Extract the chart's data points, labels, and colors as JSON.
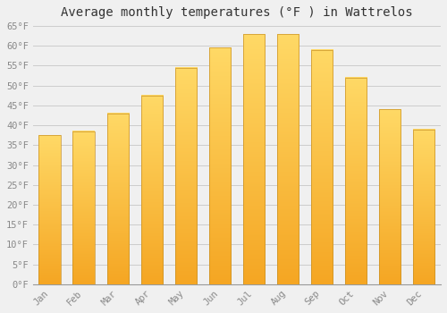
{
  "title": "Average monthly temperatures (°F ) in Wattrelos",
  "months": [
    "Jan",
    "Feb",
    "Mar",
    "Apr",
    "May",
    "Jun",
    "Jul",
    "Aug",
    "Sep",
    "Oct",
    "Nov",
    "Dec"
  ],
  "values": [
    37.5,
    38.5,
    43,
    47.5,
    54.5,
    59.5,
    63,
    63,
    59,
    52,
    44,
    39
  ],
  "bar_color_bottom": "#F5A623",
  "bar_color_top": "#FFD966",
  "bar_edge_color": "#C8922A",
  "ylim": [
    0,
    65
  ],
  "yticks": [
    0,
    5,
    10,
    15,
    20,
    25,
    30,
    35,
    40,
    45,
    50,
    55,
    60,
    65
  ],
  "background_color": "#F0F0F0",
  "grid_color": "#CCCCCC",
  "title_fontsize": 10,
  "tick_fontsize": 7.5,
  "font_family": "monospace",
  "title_color": "#333333",
  "tick_color": "#888888"
}
